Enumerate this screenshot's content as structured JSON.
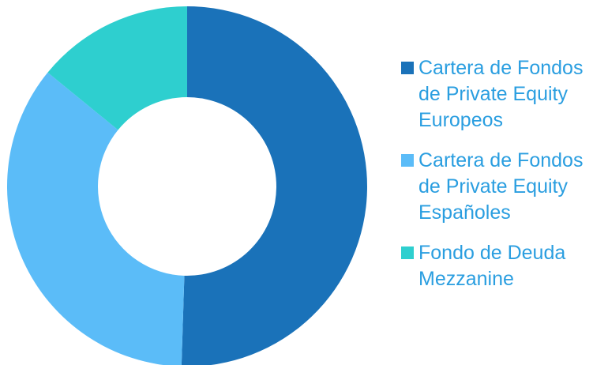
{
  "chart_data": {
    "type": "donut",
    "categories": [
      "Cartera de Fondos de Private Equity Europeos",
      "Cartera de Fondos de Private Equity Españoles",
      "Fondo de Deuda Mezzanine"
    ],
    "values": [
      50.5,
      35.4,
      14.1
    ],
    "colors": [
      "#1a72b9",
      "#5bbcf8",
      "#2ecfcf"
    ],
    "legend": "right"
  }
}
